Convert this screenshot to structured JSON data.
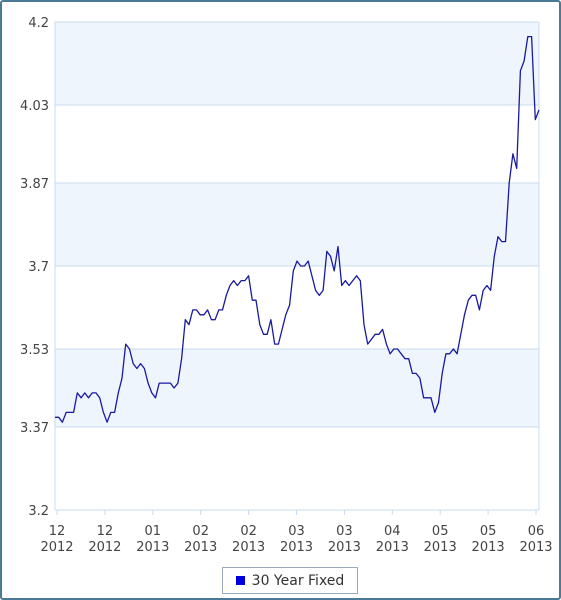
{
  "chart_data": {
    "type": "line",
    "title": "",
    "xlabel": "",
    "ylabel": "",
    "ylim": [
      3.2,
      4.2
    ],
    "yticks": [
      "4.2",
      "4.03",
      "3.87",
      "3.7",
      "3.53",
      "3.37",
      "3.2"
    ],
    "ytick_values": [
      4.2,
      4.03,
      3.87,
      3.7,
      3.53,
      3.37,
      3.2
    ],
    "xticks": [
      {
        "top": "12",
        "bottom": "2012"
      },
      {
        "top": "12",
        "bottom": "2012"
      },
      {
        "top": "01",
        "bottom": "2013"
      },
      {
        "top": "02",
        "bottom": "2013"
      },
      {
        "top": "02",
        "bottom": "2013"
      },
      {
        "top": "03",
        "bottom": "2013"
      },
      {
        "top": "03",
        "bottom": "2013"
      },
      {
        "top": "04",
        "bottom": "2013"
      },
      {
        "top": "05",
        "bottom": "2013"
      },
      {
        "top": "05",
        "bottom": "2013"
      },
      {
        "top": "06",
        "bottom": "2013"
      }
    ],
    "grid": true,
    "legend_position": "bottom-center",
    "series": [
      {
        "name": "30 Year Fixed",
        "color": "#1a1aa0",
        "values": [
          3.39,
          3.39,
          3.38,
          3.4,
          3.4,
          3.4,
          3.44,
          3.43,
          3.44,
          3.43,
          3.44,
          3.44,
          3.43,
          3.4,
          3.38,
          3.4,
          3.4,
          3.44,
          3.47,
          3.54,
          3.53,
          3.5,
          3.49,
          3.5,
          3.49,
          3.46,
          3.44,
          3.43,
          3.46,
          3.46,
          3.46,
          3.46,
          3.45,
          3.46,
          3.51,
          3.59,
          3.58,
          3.61,
          3.61,
          3.6,
          3.6,
          3.61,
          3.59,
          3.59,
          3.61,
          3.61,
          3.64,
          3.66,
          3.67,
          3.66,
          3.67,
          3.67,
          3.68,
          3.63,
          3.63,
          3.58,
          3.56,
          3.56,
          3.59,
          3.54,
          3.54,
          3.57,
          3.6,
          3.62,
          3.69,
          3.71,
          3.7,
          3.7,
          3.71,
          3.68,
          3.65,
          3.64,
          3.65,
          3.73,
          3.72,
          3.69,
          3.74,
          3.66,
          3.67,
          3.66,
          3.67,
          3.68,
          3.67,
          3.58,
          3.54,
          3.55,
          3.56,
          3.56,
          3.57,
          3.54,
          3.52,
          3.53,
          3.53,
          3.52,
          3.51,
          3.51,
          3.48,
          3.48,
          3.47,
          3.43,
          3.43,
          3.43,
          3.4,
          3.42,
          3.48,
          3.52,
          3.52,
          3.53,
          3.52,
          3.56,
          3.6,
          3.63,
          3.64,
          3.64,
          3.61,
          3.65,
          3.66,
          3.65,
          3.72,
          3.76,
          3.75,
          3.75,
          3.87,
          3.93,
          3.9,
          4.1,
          4.12,
          4.17,
          4.17,
          4.0,
          4.02
        ]
      }
    ]
  },
  "legend": {
    "label": "30 Year Fixed",
    "color": "#0000dd"
  }
}
